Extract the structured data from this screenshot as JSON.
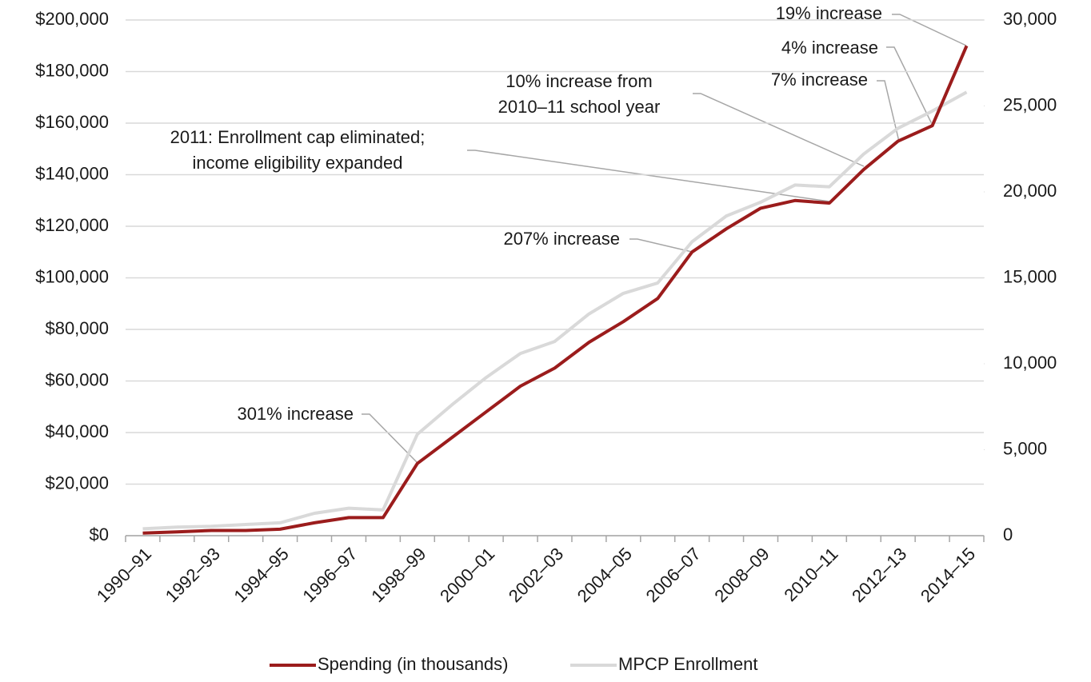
{
  "chart_data": {
    "type": "line",
    "categories": [
      "1990–91",
      null,
      "1992–93",
      null,
      "1994–95",
      null,
      "1996–97",
      null,
      "1998–99",
      null,
      "2000–01",
      null,
      "2002–03",
      null,
      "2004–05",
      null,
      "2006–07",
      null,
      "2008–09",
      null,
      "2010–11",
      null,
      "2012–13",
      null,
      "2014–15"
    ],
    "series": [
      {
        "name": "Spending (in thousands)",
        "color": "#9b1c1c",
        "values": [
          1000,
          1500,
          2000,
          2000,
          2500,
          5000,
          7000,
          7000,
          28000,
          38000,
          48000,
          58000,
          65000,
          75000,
          83000,
          92000,
          110000,
          119000,
          127000,
          130000,
          129000,
          142000,
          153000,
          159000,
          190000
        ]
      },
      {
        "name": "MPCP Enrollment",
        "color": "#d9d9d9",
        "axis": "y2",
        "values": [
          400,
          500,
          550,
          650,
          750,
          1300,
          1600,
          1500,
          5900,
          7600,
          9200,
          10600,
          11300,
          12900,
          14100,
          14700,
          17100,
          18600,
          19400,
          20400,
          20300,
          22200,
          23700,
          24700,
          25800
        ]
      }
    ],
    "ylim": [
      0,
      200000
    ],
    "yticks": [
      {
        "value": 0,
        "label": "$0"
      },
      {
        "value": 20000,
        "label": "$20,000"
      },
      {
        "value": 40000,
        "label": "$40,000"
      },
      {
        "value": 60000,
        "label": "$60,000"
      },
      {
        "value": 80000,
        "label": "$80,000"
      },
      {
        "value": 100000,
        "label": "$100,000"
      },
      {
        "value": 120000,
        "label": "$120,000"
      },
      {
        "value": 140000,
        "label": "$140,000"
      },
      {
        "value": 160000,
        "label": "$160,000"
      },
      {
        "value": 180000,
        "label": "$180,000"
      },
      {
        "value": 200000,
        "label": "$200,000"
      }
    ],
    "y2lim": [
      0,
      30000
    ],
    "y2ticks": [
      0,
      {
        "value": 5000,
        "label": "5,000"
      },
      {
        "value": 10000,
        "label": "10,000"
      },
      {
        "value": 15000,
        "label": "15,000"
      },
      {
        "value": 20000,
        "label": "20,000"
      },
      {
        "value": 25000,
        "label": "25,000"
      },
      {
        "value": 30000,
        "label": "30,000"
      }
    ],
    "grid": true,
    "legend": "bottom",
    "annotations": [
      [
        "19% increase"
      ],
      [
        "4% increase"
      ],
      [
        "7% increase"
      ],
      [
        "10% increase from",
        "2010–11 school year"
      ],
      [
        "2011: Enrollment cap eliminated;",
        "income eligibility  expanded"
      ],
      [
        "207% increase"
      ],
      [
        "301% increase"
      ]
    ]
  }
}
